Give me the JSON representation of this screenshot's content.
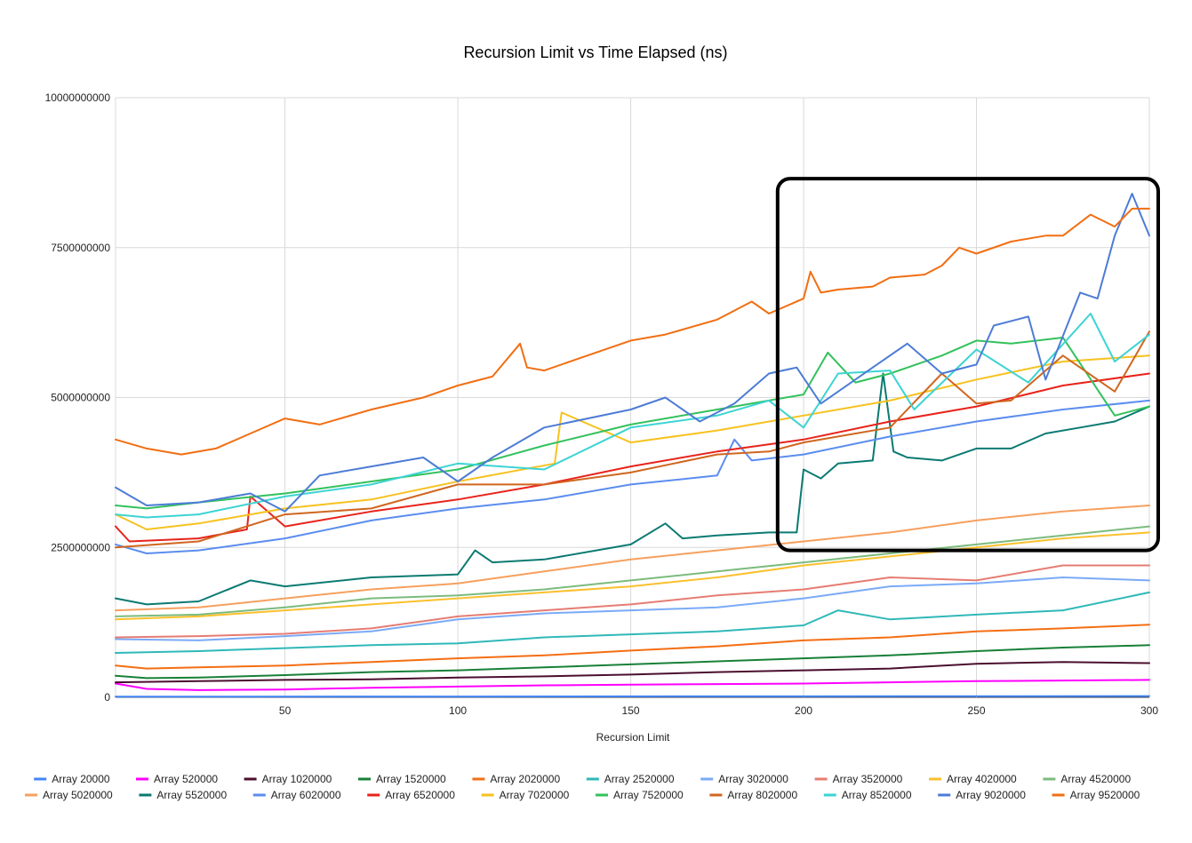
{
  "chart_data": {
    "type": "line",
    "title": "Recursion Limit vs Time Elapsed (ns)",
    "xlabel": "Recursion Limit",
    "ylabel": "",
    "xlim": [
      1,
      300
    ],
    "ylim": [
      0,
      10000000000
    ],
    "x_ticks": [
      50,
      100,
      150,
      200,
      250,
      300
    ],
    "y_ticks": [
      0,
      2500000000,
      5000000000,
      7500000000,
      10000000000
    ],
    "x_tick_labels": [
      "50",
      "100",
      "150",
      "200",
      "250",
      "300"
    ],
    "y_tick_labels": [
      "0",
      "2500000000",
      "5000000000",
      "7500000000",
      "10000000000"
    ],
    "grid": true,
    "legend_position": "bottom",
    "annotation": {
      "shape": "rounded-rectangle",
      "color": "#000000",
      "x_range": [
        193,
        300
      ],
      "y_range": [
        2450000000,
        8650000000
      ]
    },
    "series": [
      {
        "name": "Array 20000",
        "color": "#4285F4",
        "x": [
          1,
          300
        ],
        "y": [
          10000000,
          20000000
        ]
      },
      {
        "name": "Array 520000",
        "color": "#FF00FF",
        "x": [
          1,
          10,
          25,
          50,
          75,
          100,
          125,
          150,
          175,
          200,
          225,
          250,
          275,
          300
        ],
        "y": [
          230000000,
          140000000,
          120000000,
          130000000,
          160000000,
          180000000,
          200000000,
          210000000,
          220000000,
          230000000,
          250000000,
          270000000,
          280000000,
          290000000
        ]
      },
      {
        "name": "Array 1020000",
        "color": "#4B0F2E",
        "x": [
          1,
          25,
          50,
          75,
          100,
          125,
          150,
          175,
          200,
          225,
          250,
          275,
          300
        ],
        "y": [
          250000000,
          270000000,
          290000000,
          300000000,
          330000000,
          350000000,
          380000000,
          420000000,
          450000000,
          480000000,
          560000000,
          590000000,
          570000000
        ]
      },
      {
        "name": "Array 1520000",
        "color": "#188038",
        "x": [
          1,
          10,
          25,
          50,
          75,
          100,
          125,
          150,
          175,
          200,
          225,
          250,
          275,
          300
        ],
        "y": [
          360000000,
          320000000,
          330000000,
          370000000,
          420000000,
          450000000,
          500000000,
          550000000,
          600000000,
          650000000,
          700000000,
          770000000,
          830000000,
          870000000
        ]
      },
      {
        "name": "Array 2020000",
        "color": "#F46E13",
        "x": [
          1,
          10,
          25,
          50,
          75,
          100,
          125,
          150,
          175,
          200,
          225,
          250,
          275,
          300
        ],
        "y": [
          530000000,
          480000000,
          500000000,
          530000000,
          590000000,
          650000000,
          700000000,
          780000000,
          850000000,
          950000000,
          1000000000,
          1100000000,
          1150000000,
          1210000000
        ]
      },
      {
        "name": "Array 2520000",
        "color": "#30B8B8",
        "x": [
          1,
          25,
          50,
          75,
          100,
          125,
          150,
          175,
          200,
          210,
          225,
          250,
          275,
          300
        ],
        "y": [
          740000000,
          770000000,
          820000000,
          870000000,
          900000000,
          1000000000,
          1050000000,
          1100000000,
          1200000000,
          1450000000,
          1300000000,
          1380000000,
          1450000000,
          1750000000
        ]
      },
      {
        "name": "Array 3020000",
        "color": "#7BAAF7",
        "x": [
          1,
          25,
          50,
          75,
          100,
          125,
          150,
          175,
          200,
          225,
          250,
          275,
          300
        ],
        "y": [
          970000000,
          950000000,
          1020000000,
          1100000000,
          1300000000,
          1400000000,
          1450000000,
          1500000000,
          1650000000,
          1850000000,
          1900000000,
          2000000000,
          1950000000
        ]
      },
      {
        "name": "Array 3520000",
        "color": "#E67C73",
        "x": [
          1,
          25,
          50,
          75,
          100,
          125,
          150,
          175,
          200,
          225,
          250,
          275,
          300
        ],
        "y": [
          1000000000,
          1020000000,
          1060000000,
          1150000000,
          1350000000,
          1450000000,
          1550000000,
          1700000000,
          1800000000,
          2000000000,
          1950000000,
          2200000000,
          2200000000
        ]
      },
      {
        "name": "Array 4020000",
        "color": "#FBC02D",
        "x": [
          1,
          25,
          50,
          75,
          100,
          125,
          150,
          175,
          200,
          225,
          250,
          275,
          300
        ],
        "y": [
          1300000000,
          1350000000,
          1450000000,
          1550000000,
          1650000000,
          1750000000,
          1850000000,
          2000000000,
          2200000000,
          2350000000,
          2500000000,
          2650000000,
          2750000000
        ]
      },
      {
        "name": "Array 4520000",
        "color": "#7CBB7E",
        "x": [
          1,
          25,
          50,
          75,
          100,
          125,
          150,
          175,
          200,
          225,
          250,
          275,
          300
        ],
        "y": [
          1350000000,
          1380000000,
          1500000000,
          1650000000,
          1700000000,
          1800000000,
          1950000000,
          2100000000,
          2250000000,
          2400000000,
          2550000000,
          2700000000,
          2850000000
        ]
      },
      {
        "name": "Array 5020000",
        "color": "#F6A05E",
        "x": [
          1,
          25,
          50,
          75,
          100,
          125,
          150,
          175,
          200,
          225,
          250,
          275,
          300
        ],
        "y": [
          1450000000,
          1500000000,
          1650000000,
          1800000000,
          1900000000,
          2100000000,
          2300000000,
          2450000000,
          2600000000,
          2750000000,
          2950000000,
          3100000000,
          3200000000
        ]
      },
      {
        "name": "Array 5520000",
        "color": "#0B7A72",
        "x": [
          1,
          10,
          25,
          40,
          50,
          75,
          100,
          105,
          110,
          125,
          150,
          160,
          165,
          175,
          190,
          198,
          200,
          205,
          210,
          220,
          223,
          226,
          230,
          240,
          250,
          260,
          270,
          280,
          290,
          300
        ],
        "y": [
          1650000000,
          1550000000,
          1600000000,
          1950000000,
          1850000000,
          2000000000,
          2050000000,
          2450000000,
          2250000000,
          2300000000,
          2550000000,
          2900000000,
          2650000000,
          2700000000,
          2750000000,
          2750000000,
          3800000000,
          3650000000,
          3900000000,
          3950000000,
          5400000000,
          4100000000,
          4000000000,
          3950000000,
          4150000000,
          4150000000,
          4400000000,
          4500000000,
          4600000000,
          4850000000
        ]
      },
      {
        "name": "Array 6020000",
        "color": "#5B8DEF",
        "x": [
          1,
          10,
          25,
          50,
          75,
          100,
          125,
          150,
          175,
          180,
          185,
          200,
          225,
          250,
          275,
          300
        ],
        "y": [
          2550000000,
          2400000000,
          2450000000,
          2650000000,
          2950000000,
          3150000000,
          3300000000,
          3550000000,
          3700000000,
          4300000000,
          3950000000,
          4050000000,
          4350000000,
          4600000000,
          4800000000,
          4950000000
        ]
      },
      {
        "name": "Array 6520000",
        "color": "#E8231B",
        "x": [
          1,
          5,
          25,
          39,
          40,
          50,
          75,
          100,
          125,
          150,
          175,
          200,
          225,
          250,
          275,
          300
        ],
        "y": [
          2850000000,
          2600000000,
          2650000000,
          2800000000,
          3350000000,
          2850000000,
          3100000000,
          3300000000,
          3550000000,
          3850000000,
          4100000000,
          4300000000,
          4600000000,
          4850000000,
          5200000000,
          5400000000
        ]
      },
      {
        "name": "Array 7020000",
        "color": "#F7C21F",
        "x": [
          1,
          10,
          25,
          50,
          75,
          100,
          128,
          130,
          150,
          175,
          200,
          225,
          250,
          275,
          300
        ],
        "y": [
          3050000000,
          2800000000,
          2900000000,
          3150000000,
          3300000000,
          3600000000,
          3900000000,
          4750000000,
          4250000000,
          4450000000,
          4700000000,
          4950000000,
          5300000000,
          5600000000,
          5700000000
        ]
      },
      {
        "name": "Array 7520000",
        "color": "#33C15C",
        "x": [
          1,
          10,
          25,
          50,
          75,
          100,
          125,
          150,
          175,
          200,
          207,
          215,
          225,
          240,
          250,
          260,
          275,
          290,
          300
        ],
        "y": [
          3200000000,
          3150000000,
          3250000000,
          3400000000,
          3600000000,
          3800000000,
          4200000000,
          4550000000,
          4800000000,
          5050000000,
          5750000000,
          5250000000,
          5400000000,
          5700000000,
          5950000000,
          5900000000,
          6000000000,
          4700000000,
          4850000000
        ]
      },
      {
        "name": "Array 8020000",
        "color": "#D0661F",
        "x": [
          1,
          25,
          50,
          75,
          100,
          125,
          150,
          175,
          190,
          200,
          210,
          225,
          240,
          250,
          260,
          275,
          290,
          300
        ],
        "y": [
          2500000000,
          2600000000,
          3050000000,
          3150000000,
          3550000000,
          3550000000,
          3750000000,
          4050000000,
          4100000000,
          4250000000,
          4350000000,
          4500000000,
          5400000000,
          4900000000,
          4950000000,
          5700000000,
          5100000000,
          6100000000
        ]
      },
      {
        "name": "Array 8520000",
        "color": "#3ED3D3",
        "x": [
          1,
          10,
          25,
          50,
          75,
          100,
          125,
          150,
          175,
          190,
          200,
          210,
          225,
          232,
          250,
          265,
          283,
          290,
          300
        ],
        "y": [
          3050000000,
          3000000000,
          3050000000,
          3350000000,
          3550000000,
          3900000000,
          3800000000,
          4500000000,
          4700000000,
          4950000000,
          4500000000,
          5400000000,
          5450000000,
          4800000000,
          5800000000,
          5250000000,
          6400000000,
          5600000000,
          6050000000
        ]
      },
      {
        "name": "Array 9020000",
        "color": "#4D7CD6",
        "x": [
          1,
          10,
          25,
          40,
          50,
          60,
          75,
          90,
          100,
          110,
          125,
          150,
          160,
          170,
          180,
          190,
          198,
          205,
          220,
          230,
          240,
          250,
          255,
          265,
          270,
          280,
          285,
          290,
          295,
          300
        ],
        "y": [
          3500000000,
          3200000000,
          3250000000,
          3400000000,
          3100000000,
          3700000000,
          3850000000,
          4000000000,
          3600000000,
          4000000000,
          4500000000,
          4800000000,
          5000000000,
          4600000000,
          4900000000,
          5400000000,
          5500000000,
          4900000000,
          5500000000,
          5900000000,
          5400000000,
          5550000000,
          6200000000,
          6350000000,
          5300000000,
          6750000000,
          6650000000,
          7700000000,
          8400000000,
          7700000000
        ]
      },
      {
        "name": "Array 9520000",
        "color": "#F26E12",
        "x": [
          1,
          10,
          20,
          30,
          40,
          50,
          60,
          75,
          90,
          100,
          110,
          118,
          120,
          125,
          135,
          150,
          160,
          175,
          185,
          190,
          200,
          202,
          205,
          210,
          220,
          225,
          235,
          240,
          245,
          250,
          260,
          270,
          275,
          283,
          290,
          295,
          300
        ],
        "y": [
          4300000000,
          4150000000,
          4050000000,
          4150000000,
          4400000000,
          4650000000,
          4550000000,
          4800000000,
          5000000000,
          5200000000,
          5350000000,
          5900000000,
          5500000000,
          5450000000,
          5650000000,
          5950000000,
          6050000000,
          6300000000,
          6600000000,
          6400000000,
          6650000000,
          7100000000,
          6750000000,
          6800000000,
          6850000000,
          7000000000,
          7050000000,
          7200000000,
          7500000000,
          7400000000,
          7600000000,
          7700000000,
          7700000000,
          8050000000,
          7850000000,
          8150000000,
          8150000000
        ]
      }
    ]
  }
}
